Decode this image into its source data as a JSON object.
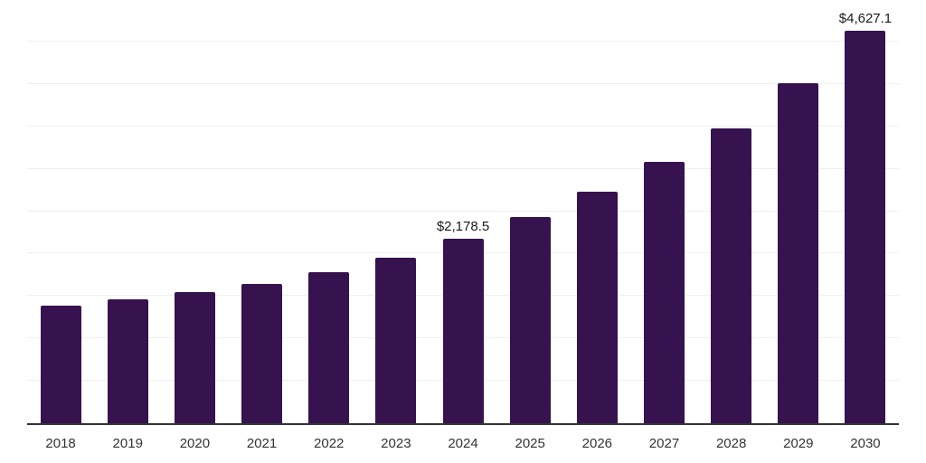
{
  "chart_data": {
    "type": "bar",
    "title": "",
    "xlabel": "",
    "ylabel": "",
    "categories": [
      "2018",
      "2019",
      "2020",
      "2021",
      "2022",
      "2023",
      "2024",
      "2025",
      "2026",
      "2027",
      "2028",
      "2029",
      "2030"
    ],
    "values": [
      1390,
      1465,
      1550,
      1640,
      1780,
      1955,
      2178.5,
      2435,
      2730,
      3080,
      3480,
      4005,
      4627.1
    ],
    "data_labels": [
      null,
      null,
      null,
      null,
      null,
      null,
      "$2,178.5",
      null,
      null,
      null,
      null,
      null,
      "$4,627.1"
    ],
    "ylim": [
      0,
      5000
    ],
    "gridline_step": 500,
    "grid": "horizontal-only",
    "legend_position": "none",
    "y_axis_tick_labels_visible": false
  },
  "colors": {
    "bar": "#36124e",
    "grid": "#efefef",
    "axis": "#333333",
    "tick_label": "#333333",
    "data_label": "#1a1a1a",
    "background": "#ffffff"
  }
}
